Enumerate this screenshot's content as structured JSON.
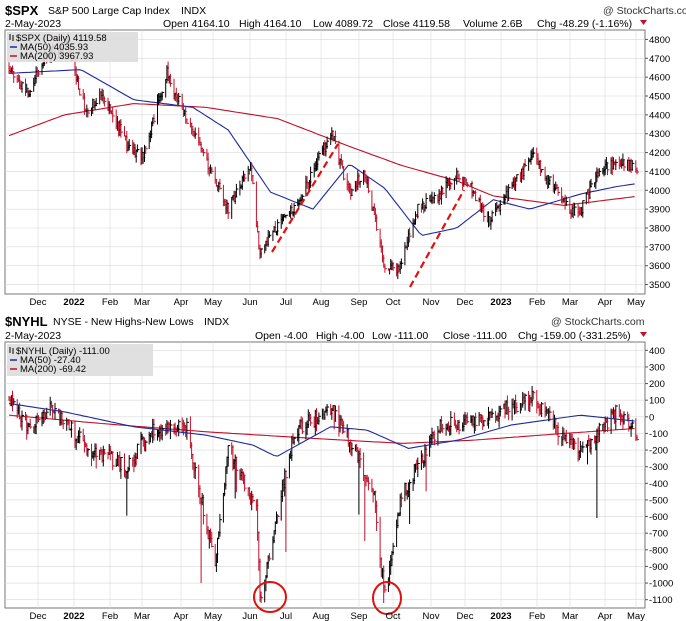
{
  "panels": [
    {
      "symbol": "$SPX",
      "name": "S&P 500 Large Cap Index",
      "exchange": "INDX",
      "date": "2-May-2023",
      "quote": {
        "open": "Open 4164.10",
        "high": "High 4164.10",
        "low": "Low 4089.72",
        "close": "Close 4119.58",
        "volume": "Volume 2.6B",
        "chg": "Chg -48.29 (-1.16%)"
      },
      "watermark": "@ StockCharts.com",
      "legend": {
        "main": "$SPX (Daily) 4119.58",
        "ma50": "MA(50) 4035.93",
        "ma200": "MA(200) 3967.93"
      },
      "y_ticks": [
        "4800",
        "4700",
        "4600",
        "4500",
        "4400",
        "4300",
        "4200",
        "4100",
        "4000",
        "3900",
        "3800",
        "3700",
        "3600",
        "3500"
      ]
    },
    {
      "symbol": "$NYHL",
      "name": "NYSE - New Highs-New Lows",
      "exchange": "INDX",
      "date": "2-May-2023",
      "quote": {
        "open": "Open -4.00",
        "high": "High -4.00",
        "low": "Low -111.00",
        "close": "Close -111.00",
        "chg": "Chg -159.00 (-331.25%)"
      },
      "watermark": "@ StockCharts.com",
      "legend": {
        "main": "$NYHL (Daily) -111.00",
        "ma50": "MA(50) -27.40",
        "ma200": "MA(200) -69.42"
      },
      "y_ticks": [
        "400",
        "300",
        "200",
        "100",
        "0",
        "-100",
        "-200",
        "-300",
        "-400",
        "-500",
        "-600",
        "-700",
        "-800",
        "-900",
        "-1000",
        "-1100"
      ]
    }
  ],
  "x_ticks": [
    "Dec",
    "2022",
    "Feb",
    "Mar",
    "Apr",
    "May",
    "Jun",
    "Jul",
    "Aug",
    "Sep",
    "Oct",
    "Nov",
    "Dec",
    "2023",
    "Feb",
    "Mar",
    "Apr",
    "May"
  ],
  "colors": {
    "down": "#c0102a",
    "up": "#000000",
    "ma50": "#1f2a9c",
    "ma200": "#c0102a",
    "grid": "#d9d9d9",
    "annotation": "#e01010",
    "legend_bg": "#dddddd"
  },
  "chart_data": [
    {
      "type": "line",
      "title": "$SPX S&P 500 Large Cap Index",
      "style": "daily high-low-close bars",
      "x_range": [
        "2021-11-15",
        "2023-05-02"
      ],
      "ylim": [
        3450,
        4850
      ],
      "log_scale": false,
      "grid": true,
      "series": [
        {
          "name": "$SPX (Daily)",
          "x": [
            "2021-11-15",
            "2021-12-01",
            "2021-12-15",
            "2022-01-03",
            "2022-01-20",
            "2022-02-01",
            "2022-02-23",
            "2022-03-08",
            "2022-03-29",
            "2022-04-14",
            "2022-05-02",
            "2022-05-20",
            "2022-06-08",
            "2022-06-16",
            "2022-07-01",
            "2022-07-20",
            "2022-08-01",
            "2022-08-16",
            "2022-09-01",
            "2022-09-12",
            "2022-09-30",
            "2022-10-12",
            "2022-10-28",
            "2022-11-15",
            "2022-12-01",
            "2022-12-13",
            "2022-12-28",
            "2023-01-12",
            "2023-02-02",
            "2023-02-24",
            "2023-03-13",
            "2023-03-31",
            "2023-04-18",
            "2023-05-02"
          ],
          "values": [
            4650,
            4520,
            4710,
            4780,
            4400,
            4530,
            4240,
            4180,
            4620,
            4380,
            4150,
            3900,
            4130,
            3660,
            3820,
            3950,
            4130,
            4300,
            3960,
            4120,
            3590,
            3590,
            3900,
            3980,
            4080,
            4000,
            3830,
            3990,
            4180,
            3980,
            3860,
            4110,
            4150,
            4120
          ]
        },
        {
          "name": "MA(50)",
          "x": [
            "2021-11-15",
            "2022-01-15",
            "2022-03-01",
            "2022-04-20",
            "2022-05-20",
            "2022-06-25",
            "2022-07-31",
            "2022-08-31",
            "2022-09-30",
            "2022-10-31",
            "2022-11-30",
            "2022-12-31",
            "2023-01-31",
            "2023-03-15",
            "2023-04-15",
            "2023-05-02"
          ],
          "values": [
            4620,
            4640,
            4480,
            4440,
            4320,
            3990,
            3900,
            4140,
            4010,
            3760,
            3800,
            3950,
            3900,
            3980,
            4020,
            4035.93
          ]
        },
        {
          "name": "MA(200)",
          "x": [
            "2021-11-15",
            "2022-01-01",
            "2022-03-01",
            "2022-05-01",
            "2022-07-01",
            "2022-09-01",
            "2022-10-15",
            "2022-11-30",
            "2022-12-31",
            "2023-03-01",
            "2023-05-02"
          ],
          "values": [
            4290,
            4400,
            4460,
            4440,
            4380,
            4230,
            4130,
            4050,
            3970,
            3920,
            3967.93
          ]
        }
      ],
      "annotations": [
        "dashed trend line Jun 2022 rally",
        "dashed trend line Oct 2022 rally"
      ]
    },
    {
      "type": "line",
      "title": "$NYHL NYSE - New Highs-New Lows",
      "style": "daily high-low-close bars",
      "x_range": [
        "2021-11-15",
        "2023-05-02"
      ],
      "ylim": [
        -1150,
        450
      ],
      "log_scale": false,
      "grid": true,
      "series": [
        {
          "name": "$NYHL (Daily)",
          "x": [
            "2021-11-15",
            "2021-12-01",
            "2021-12-20",
            "2022-01-20",
            "2022-02-24",
            "2022-03-15",
            "2022-04-15",
            "2022-05-09",
            "2022-05-20",
            "2022-06-13",
            "2022-06-16",
            "2022-07-15",
            "2022-08-15",
            "2022-09-01",
            "2022-09-20",
            "2022-09-30",
            "2022-10-13",
            "2022-11-15",
            "2022-12-15",
            "2023-01-15",
            "2023-02-02",
            "2023-03-13",
            "2023-04-15",
            "2023-05-02"
          ],
          "values": [
            120,
            -50,
            60,
            -180,
            -300,
            -80,
            -70,
            -900,
            -180,
            -550,
            -1100,
            -90,
            50,
            -150,
            -430,
            -1080,
            -500,
            -50,
            -30,
            60,
            120,
            -230,
            30,
            -111
          ]
        },
        {
          "name": "MA(50)",
          "x": [
            "2021-11-15",
            "2022-01-01",
            "2022-03-01",
            "2022-05-01",
            "2022-06-10",
            "2022-06-30",
            "2022-08-15",
            "2022-09-15",
            "2022-10-20",
            "2022-12-01",
            "2023-01-15",
            "2023-03-15",
            "2023-05-02"
          ],
          "values": [
            80,
            30,
            -60,
            -110,
            -170,
            -240,
            -60,
            -80,
            -190,
            -140,
            -50,
            10,
            -27.4
          ]
        },
        {
          "name": "MA(200)",
          "x": [
            "2021-11-15",
            "2022-02-01",
            "2022-05-01",
            "2022-08-01",
            "2022-10-15",
            "2022-12-15",
            "2023-03-01",
            "2023-05-02"
          ],
          "values": [
            10,
            -40,
            -90,
            -130,
            -160,
            -140,
            -100,
            -69.42
          ]
        }
      ],
      "annotations": [
        "circle at Jun 2022 low",
        "circle at Sep 2022 low"
      ]
    }
  ]
}
